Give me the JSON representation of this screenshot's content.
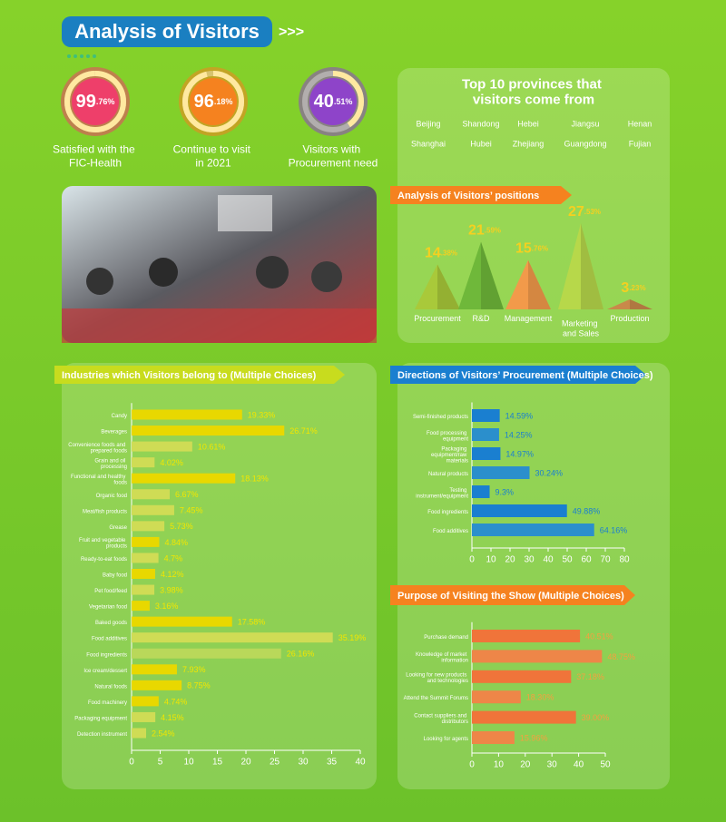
{
  "header": {
    "title": "Analysis of Visitors"
  },
  "stats": [
    {
      "value": 99.76,
      "value_label": "99.76%",
      "caption": "Satisfied with the FIC-Health",
      "color": "#ee3f6a"
    },
    {
      "value": 96.18,
      "value_label": "96.18%",
      "caption": "Continue to visit in 2021",
      "color": "#f5821f"
    },
    {
      "value": 40.51,
      "value_label": "40.51%",
      "caption": "Visitors with Procurement need",
      "color": "#8e44c9"
    }
  ],
  "provinces": {
    "title": "Top 10 provinces that visitors come from",
    "items": [
      "Beijing",
      "Shandong",
      "Hebei",
      "Jiangsu",
      "Henan",
      "Shanghai",
      "Hubei",
      "Zhejiang",
      "Guangdong",
      "Fujian"
    ]
  },
  "chart_data": [
    {
      "type": "pyramid",
      "title": "Analysis of Visitors’ positions",
      "categories": [
        "Procurement",
        "R&D",
        "Management",
        "Marketing and Sales",
        "Production"
      ],
      "values": [
        14.38,
        21.59,
        15.76,
        27.53,
        3.23
      ],
      "value_labels": [
        "14.38%",
        "21.59%",
        "15.76%",
        "27.53%",
        "3.23%"
      ],
      "colors": [
        "#a9c93a",
        "#6fb83a",
        "#f29a4a",
        "#b7d84a",
        "#c9894a"
      ],
      "header_color": "#f5821f"
    },
    {
      "type": "hbar",
      "title": "Industries which Visitors belong to (Multiple Choices)",
      "categories": [
        "Candy",
        "Beverages",
        "Convenience foods and prepared foods",
        "Grain and oil processing",
        "Functional and healthy foods",
        "Organic food",
        "Meat/fish products",
        "Grease",
        "Fruit and vegetable products",
        "Ready-to-eat foods",
        "Baby food",
        "Pet food/feed",
        "Vegetarian food",
        "Baked goods",
        "Food additives",
        "Food ingredients",
        "Ice cream/dessert",
        "Natural foods",
        "Food machinery",
        "Packaging equipment",
        "Detection instrument"
      ],
      "values": [
        19.33,
        26.71,
        10.61,
        4.02,
        18.13,
        6.67,
        7.45,
        5.73,
        4.84,
        4.7,
        4.12,
        3.98,
        3.16,
        17.58,
        35.19,
        26.16,
        7.93,
        8.75,
        4.74,
        4.15,
        2.54
      ],
      "value_labels": [
        "19.33%",
        "26.71%",
        "10.61%",
        "4.02%",
        "18.13%",
        "6.67%",
        "7.45%",
        "5.73%",
        "4.84%",
        "4.7%",
        "4.12%",
        "3.98%",
        "3.16%",
        "17.58%",
        "35.19%",
        "26.16%",
        "7.93%",
        "8.75%",
        "4.74%",
        "4.15%",
        "2.54%"
      ],
      "colors": [
        "#e8d800",
        "#e8d800",
        "#cfdc55",
        "#cfdc55",
        "#e8d800",
        "#cfdc55",
        "#cfdc55",
        "#cfdc55",
        "#e8d800",
        "#cfdc55",
        "#e8d800",
        "#cfdc55",
        "#e8d800",
        "#e8d800",
        "#cfdc55",
        "#b9d85a",
        "#e8d800",
        "#e8d800",
        "#e8d800",
        "#cfdc55",
        "#cfdc55"
      ],
      "label_color": "#f2e600",
      "header_color": "#c8dc1e",
      "xlim": [
        0,
        40
      ],
      "xticks": [
        0,
        5,
        10,
        15,
        20,
        25,
        30,
        35,
        40
      ]
    },
    {
      "type": "hbar",
      "title": "Directions of Visitors’ Procurement (Multiple Choices)",
      "categories": [
        "Semi-finished products",
        "Food processing equipment",
        "Packaging equipment/raw materials",
        "Natural products",
        "Testing instrument/equipment",
        "Food ingredients",
        "Food additives"
      ],
      "values": [
        14.59,
        14.25,
        14.97,
        30.24,
        9.3,
        49.88,
        64.16
      ],
      "value_labels": [
        "14.59%",
        "14.25%",
        "14.97%",
        "30.24%",
        "9.3%",
        "49.88%",
        "64.16%"
      ],
      "colors": [
        "#1a7fd0",
        "#2b8fcc",
        "#1a7fd0",
        "#2b8fcc",
        "#1a7fd0",
        "#1a7fd0",
        "#2b8fcc"
      ],
      "label_color": "#1a7fd0",
      "header_color": "#1a7fd0",
      "xlim": [
        0,
        80
      ],
      "xticks": [
        0,
        10,
        20,
        30,
        40,
        50,
        60,
        70,
        80
      ]
    },
    {
      "type": "hbar",
      "title": "Purpose of Visiting the Show (Multiple Choices)",
      "categories": [
        "Purchase demand",
        "Knowledge of market information",
        "Looking for new products and technologies",
        "Attend the Summit Forums",
        "Contact suppliers and distributors",
        "Looking for agents"
      ],
      "values": [
        40.51,
        48.75,
        37.18,
        18.3,
        39.0,
        15.96
      ],
      "value_labels": [
        "40.51%",
        "48.75%",
        "37.18%",
        "18.30%",
        "39.00%",
        "15.96%"
      ],
      "colors": [
        "#f0743a",
        "#ee8648",
        "#f0743a",
        "#ee8648",
        "#f0743a",
        "#ee8648"
      ],
      "label_color": "#f5a040",
      "header_color": "#f5821f",
      "xlim": [
        0,
        50
      ],
      "xticks": [
        0,
        10,
        20,
        30,
        40,
        50
      ]
    }
  ]
}
